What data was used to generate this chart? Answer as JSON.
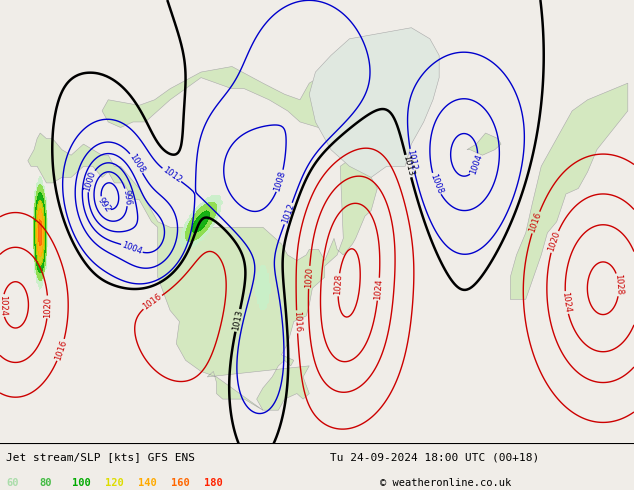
{
  "title_left": "Jet stream/SLP [kts] GFS ENS",
  "title_right": "Tu 24-09-2024 18:00 UTC (00+18)",
  "copyright": "© weatheronline.co.uk",
  "legend_values": [
    "60",
    "80",
    "100",
    "120",
    "140",
    "160",
    "180"
  ],
  "legend_colors": [
    "#aaddaa",
    "#44bb44",
    "#00aa00",
    "#dddd00",
    "#ffaa00",
    "#ff6600",
    "#ff2200"
  ],
  "bg_color": "#f0ede8",
  "land_color": "#d4e8c0",
  "ocean_color": "#f0ede8",
  "border_color": "#aaaaaa",
  "state_color": "#bbbbbb",
  "contour_color_low": "#0000cc",
  "contour_color_high": "#cc0000",
  "contour_color_1013": "#000000",
  "jet_colors": [
    "#c8f0c8",
    "#88dd44",
    "#00aa00",
    "#cccc00",
    "#ffaa00",
    "#ff6600",
    "#ff0000"
  ],
  "jet_levels": [
    60,
    80,
    100,
    120,
    140,
    160,
    180,
    220
  ],
  "figsize": [
    6.34,
    4.9
  ],
  "dpi": 100
}
